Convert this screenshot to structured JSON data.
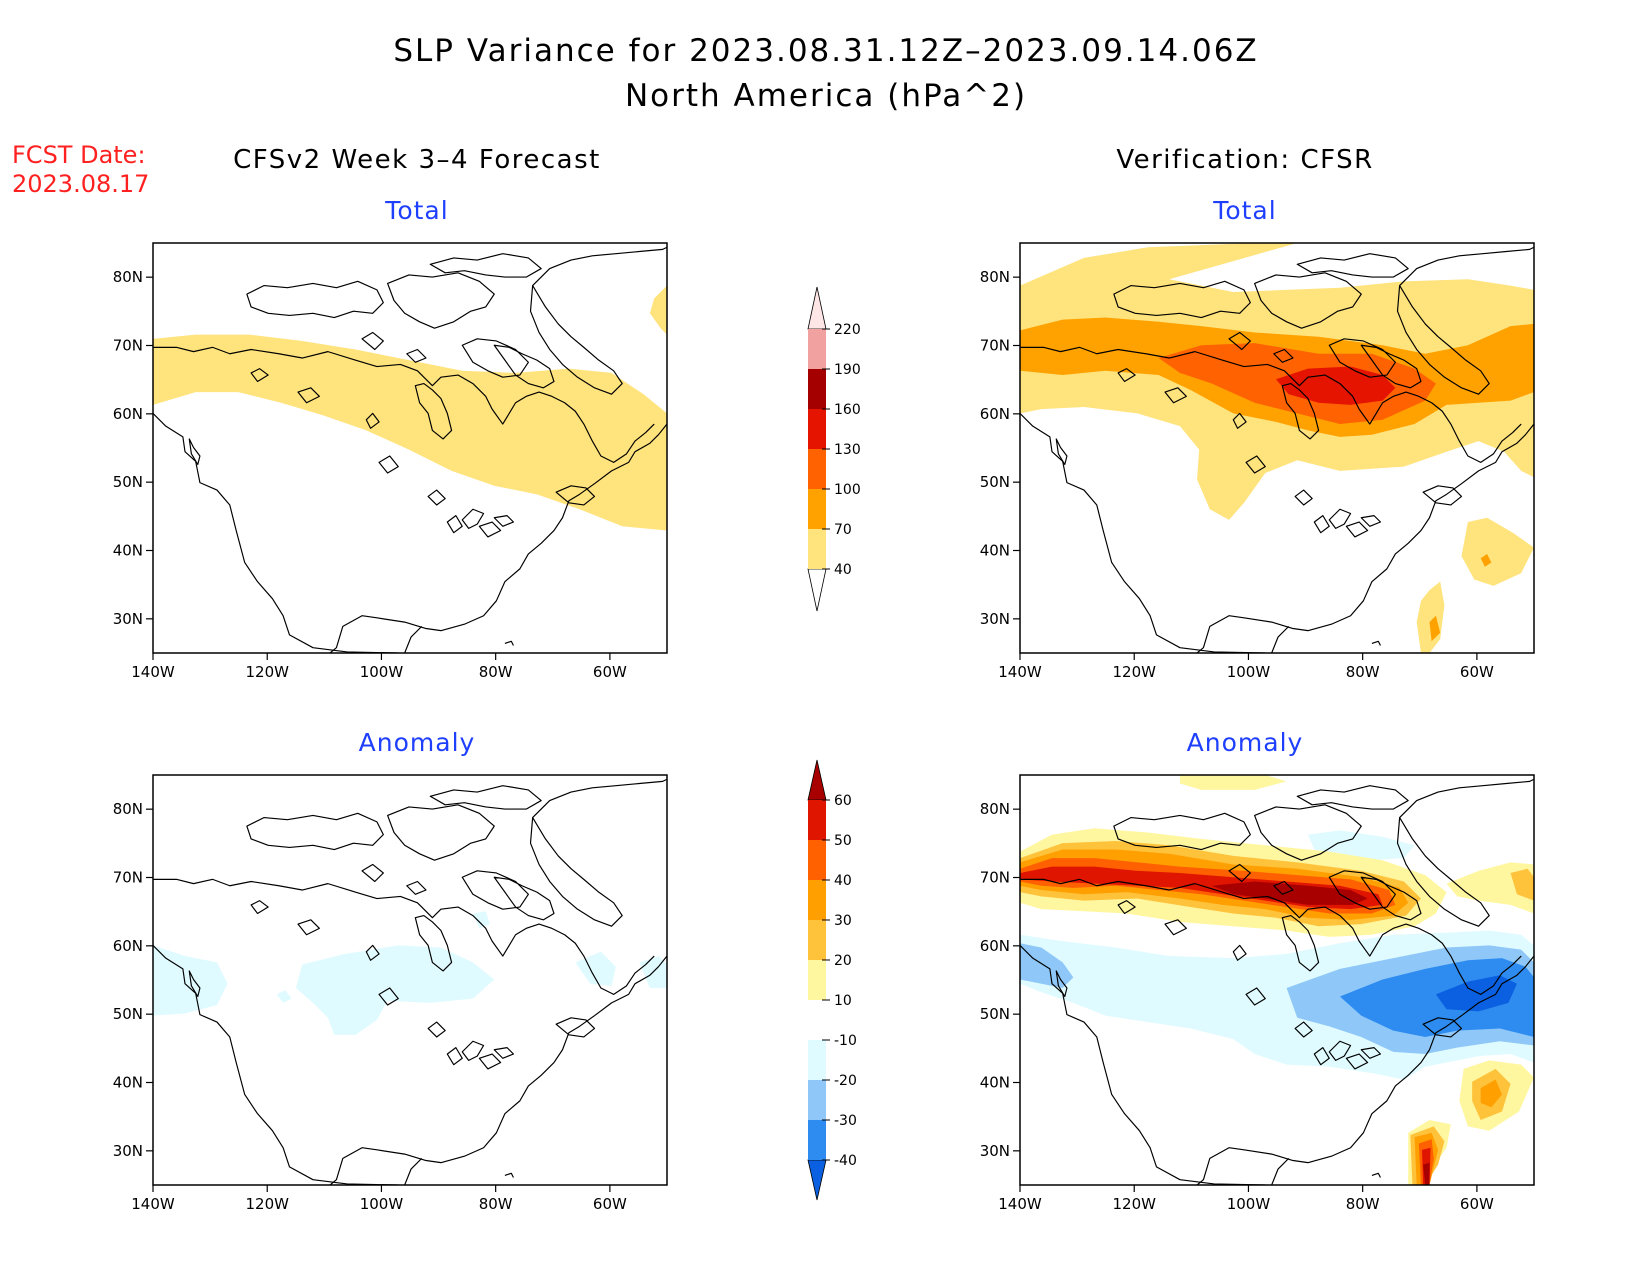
{
  "title_line1": "SLP Variance for 2023.08.31.12Z–2023.09.14.06Z",
  "title_line2": "North America (hPa^2)",
  "fcst_label": "FCST Date:",
  "fcst_date": "2023.08.17",
  "left_column_title": "CFSv2 Week 3–4 Forecast",
  "right_column_title": "Verification: CFSR",
  "colors": {
    "panel_title": "#1f3fff",
    "fcst": "#ff2020"
  },
  "axes": {
    "lon_labels": [
      "140W",
      "120W",
      "100W",
      "80W",
      "60W"
    ],
    "lat_labels": [
      "30N",
      "40N",
      "50N",
      "60N",
      "70N",
      "80N"
    ],
    "lon_range": [
      -140,
      -50
    ],
    "lat_range": [
      25,
      85
    ]
  },
  "colorbar_total": {
    "levels": [
      "40",
      "70",
      "100",
      "130",
      "160",
      "190",
      "220"
    ],
    "colors": [
      "#ffffff",
      "#ffe37d",
      "#ffa200",
      "#ff6200",
      "#e51400",
      "#a50000",
      "#f2a1a1",
      "#ffe6e6"
    ]
  },
  "colorbar_anomaly": {
    "levels": [
      "-40",
      "-30",
      "-20",
      "-10",
      "10",
      "20",
      "30",
      "40",
      "50",
      "60"
    ],
    "colors": [
      "#0a60e0",
      "#2e8cf0",
      "#8fc8f8",
      "#e0fbff",
      "#ffffff",
      "#fff6a0",
      "#ffc23b",
      "#ff9f00",
      "#ff6100",
      "#e01500",
      "#a80000"
    ]
  },
  "panels": [
    {
      "id": "forecast-total",
      "title": "Total"
    },
    {
      "id": "verification-total",
      "title": "Total"
    },
    {
      "id": "forecast-anomaly",
      "title": "Anomaly"
    },
    {
      "id": "verification-anomaly",
      "title": "Anomaly"
    }
  ]
}
